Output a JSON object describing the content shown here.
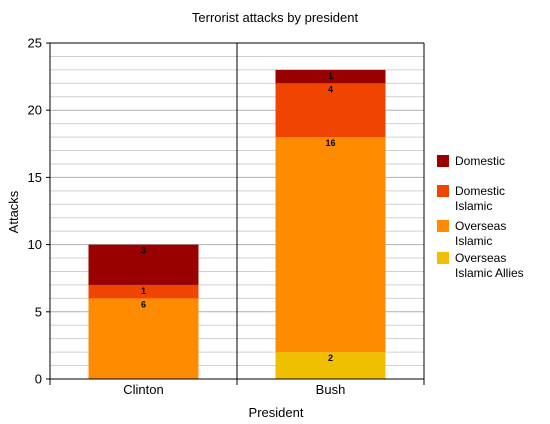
{
  "chart_data": {
    "type": "bar",
    "stacked": true,
    "title": "Terrorist attacks by president",
    "xlabel": "President",
    "ylabel": "Attacks",
    "categories": [
      "Clinton",
      "Bush"
    ],
    "ylim": [
      0,
      25
    ],
    "yticks": [
      0,
      5,
      10,
      15,
      20,
      25
    ],
    "minor_grid_step": 1,
    "grid": true,
    "legend_position": "right",
    "series": [
      {
        "name": "Overseas Islamic Allies",
        "legend_lines": [
          "Overseas",
          "Islamic Allies"
        ],
        "color": "#f0c000",
        "values": [
          0,
          2
        ],
        "labels": [
          "",
          "2"
        ]
      },
      {
        "name": "Overseas Islamic",
        "legend_lines": [
          "Overseas",
          "Islamic"
        ],
        "color": "#ff8c00",
        "values": [
          6,
          16
        ],
        "labels": [
          "6",
          "16"
        ]
      },
      {
        "name": "Domestic Islamic",
        "legend_lines": [
          "Domestic",
          "Islamic"
        ],
        "color": "#f04500",
        "values": [
          1,
          4
        ],
        "labels": [
          "1",
          "4"
        ]
      },
      {
        "name": "Domestic",
        "legend_lines": [
          "Domestic"
        ],
        "color": "#990000",
        "values": [
          3,
          1
        ],
        "labels": [
          "3",
          "1"
        ]
      }
    ],
    "legend_order": [
      "Domestic",
      "Domestic Islamic",
      "Overseas Islamic",
      "Overseas Islamic Allies"
    ]
  }
}
